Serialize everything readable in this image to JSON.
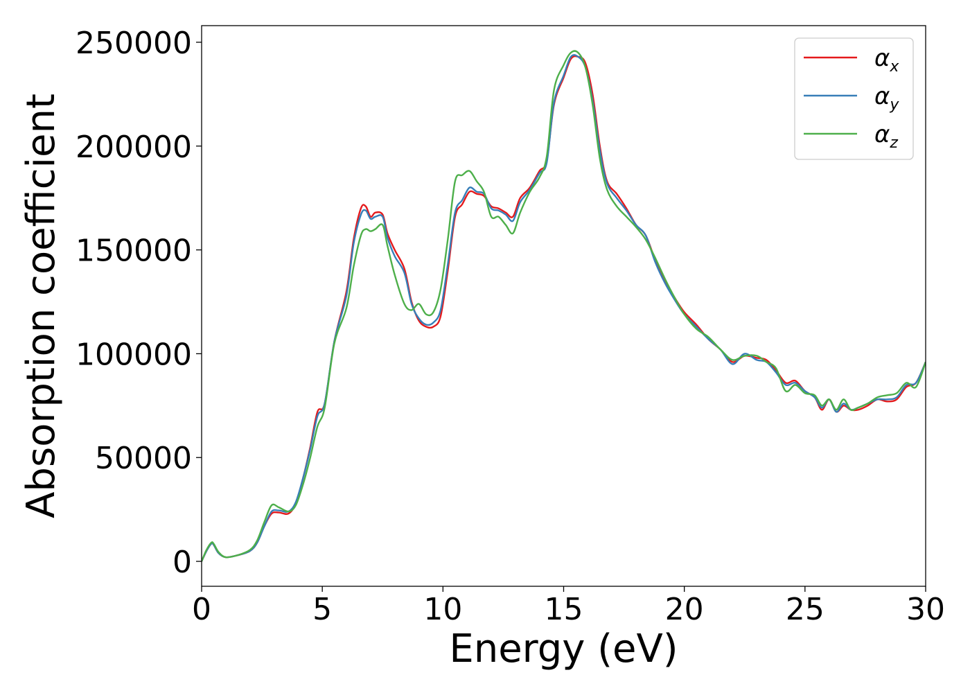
{
  "chart_data": {
    "type": "line",
    "xlabel": "Energy (eV)",
    "ylabel": "Absorption coefficient",
    "xlim": [
      0,
      30
    ],
    "ylim": [
      -12000,
      258000
    ],
    "xticks": [
      0,
      5,
      10,
      15,
      20,
      25,
      30
    ],
    "yticks": [
      0,
      50000,
      100000,
      150000,
      200000,
      250000
    ],
    "grid": false,
    "legend_position": "top-right",
    "series": [
      {
        "name": "α",
        "subscript": "x",
        "color": "#e41a1c",
        "x": [
          0,
          0.2,
          0.4,
          0.5,
          0.7,
          1.0,
          1.5,
          2.0,
          2.3,
          2.6,
          2.9,
          3.2,
          3.6,
          3.9,
          4.2,
          4.5,
          4.8,
          5.1,
          5.5,
          6.0,
          6.3,
          6.6,
          6.8,
          7.0,
          7.2,
          7.5,
          7.7,
          8.0,
          8.4,
          8.7,
          9.0,
          9.3,
          9.6,
          9.9,
          10.2,
          10.5,
          10.8,
          11.1,
          11.4,
          11.7,
          12.0,
          12.3,
          12.6,
          12.9,
          13.2,
          13.6,
          14.0,
          14.3,
          14.6,
          15.0,
          15.3,
          15.6,
          15.9,
          16.2,
          16.5,
          16.8,
          17.2,
          17.6,
          18.0,
          18.4,
          18.8,
          19.2,
          19.6,
          20.0,
          20.5,
          21.0,
          21.5,
          22.0,
          22.5,
          23.0,
          23.4,
          23.8,
          24.2,
          24.6,
          25.0,
          25.4,
          25.7,
          26.0,
          26.3,
          26.6,
          26.9,
          27.2,
          27.6,
          28.0,
          28.4,
          28.8,
          29.2,
          29.6,
          30.0
        ],
        "values": [
          0,
          5000,
          8500,
          8000,
          4000,
          2000,
          3000,
          5000,
          9000,
          17000,
          23000,
          23500,
          23000,
          28000,
          40000,
          55000,
          72000,
          76000,
          106000,
          130000,
          155000,
          170000,
          171000,
          166000,
          168000,
          167000,
          158000,
          150000,
          141000,
          125000,
          116000,
          113000,
          113000,
          118000,
          140000,
          166000,
          172000,
          178000,
          177000,
          176000,
          171000,
          170000,
          168000,
          166000,
          175000,
          180000,
          188000,
          193000,
          220000,
          233000,
          242000,
          243000,
          240000,
          225000,
          200000,
          183000,
          177000,
          170000,
          162000,
          157000,
          145000,
          135000,
          127000,
          120000,
          114000,
          107000,
          102000,
          96000,
          99000,
          98000,
          97000,
          92000,
          86000,
          87000,
          82000,
          79000,
          73000,
          78000,
          72000,
          75000,
          73000,
          73000,
          75000,
          78000,
          77000,
          78000,
          84000,
          86000,
          96000
        ]
      },
      {
        "name": "α",
        "subscript": "y",
        "color": "#377eb8",
        "x": [
          0,
          0.2,
          0.4,
          0.5,
          0.7,
          1.0,
          1.5,
          2.0,
          2.3,
          2.6,
          2.9,
          3.2,
          3.6,
          3.9,
          4.2,
          4.5,
          4.8,
          5.1,
          5.5,
          6.0,
          6.3,
          6.6,
          6.8,
          7.0,
          7.2,
          7.5,
          7.7,
          8.0,
          8.4,
          8.7,
          9.0,
          9.3,
          9.6,
          9.9,
          10.2,
          10.5,
          10.8,
          11.1,
          11.4,
          11.7,
          12.0,
          12.3,
          12.6,
          12.9,
          13.2,
          13.6,
          14.0,
          14.3,
          14.6,
          15.0,
          15.3,
          15.6,
          15.9,
          16.2,
          16.5,
          16.8,
          17.2,
          17.6,
          18.0,
          18.4,
          18.8,
          19.2,
          19.6,
          20.0,
          20.5,
          21.0,
          21.5,
          22.0,
          22.5,
          23.0,
          23.4,
          23.8,
          24.2,
          24.6,
          25.0,
          25.4,
          25.7,
          26.0,
          26.3,
          26.6,
          26.9,
          27.2,
          27.6,
          28.0,
          28.4,
          28.8,
          29.2,
          29.6,
          30.0
        ],
        "values": [
          0,
          5000,
          8500,
          8000,
          4000,
          2000,
          3000,
          5000,
          9000,
          17000,
          24000,
          24500,
          24000,
          28500,
          40000,
          54000,
          70000,
          76000,
          106000,
          128000,
          153000,
          167000,
          169000,
          165000,
          166000,
          166000,
          156000,
          147000,
          139000,
          124000,
          117000,
          114000,
          115000,
          121000,
          143000,
          168000,
          174000,
          180000,
          178000,
          177000,
          170000,
          169000,
          167000,
          164000,
          173000,
          179000,
          187000,
          192000,
          221000,
          234000,
          243000,
          243000,
          238000,
          222000,
          198000,
          182000,
          175000,
          169000,
          162000,
          157000,
          144000,
          134000,
          126000,
          119000,
          113000,
          107000,
          102000,
          95000,
          100000,
          97000,
          96000,
          91000,
          85000,
          86000,
          82000,
          79000,
          74000,
          78000,
          72000,
          76000,
          73000,
          74000,
          76000,
          78000,
          78000,
          79000,
          85000,
          86000,
          96000
        ]
      },
      {
        "name": "α",
        "subscript": "z",
        "color": "#4daf4a",
        "x": [
          0,
          0.2,
          0.4,
          0.5,
          0.7,
          1.0,
          1.5,
          2.0,
          2.3,
          2.6,
          2.9,
          3.2,
          3.6,
          3.9,
          4.2,
          4.5,
          4.8,
          5.1,
          5.5,
          6.0,
          6.3,
          6.6,
          6.8,
          7.0,
          7.2,
          7.5,
          7.7,
          8.0,
          8.4,
          8.7,
          9.0,
          9.3,
          9.6,
          9.9,
          10.2,
          10.5,
          10.8,
          11.1,
          11.4,
          11.7,
          12.0,
          12.3,
          12.6,
          12.9,
          13.2,
          13.6,
          14.0,
          14.3,
          14.6,
          15.0,
          15.3,
          15.6,
          15.9,
          16.2,
          16.5,
          16.8,
          17.2,
          17.6,
          18.0,
          18.4,
          18.8,
          19.2,
          19.6,
          20.0,
          20.5,
          21.0,
          21.5,
          22.0,
          22.5,
          23.0,
          23.4,
          23.8,
          24.2,
          24.6,
          25.0,
          25.4,
          25.7,
          26.0,
          26.3,
          26.6,
          26.9,
          27.2,
          27.6,
          28.0,
          28.4,
          28.8,
          29.2,
          29.6,
          30.0
        ],
        "values": [
          0,
          5500,
          9000,
          8500,
          4500,
          2000,
          3000,
          5500,
          10000,
          19000,
          27000,
          26000,
          24000,
          27000,
          37000,
          50000,
          65000,
          74000,
          105000,
          122000,
          142000,
          157000,
          160000,
          159000,
          160000,
          162000,
          152000,
          138000,
          124000,
          121000,
          124000,
          119000,
          120000,
          131000,
          155000,
          183000,
          186000,
          188000,
          183000,
          178000,
          166000,
          166000,
          162000,
          158000,
          168000,
          178000,
          185000,
          195000,
          227000,
          239000,
          245000,
          245000,
          238000,
          220000,
          194000,
          179000,
          171000,
          166000,
          161000,
          155000,
          146000,
          136000,
          127000,
          119000,
          112000,
          108000,
          102000,
          97000,
          99000,
          99000,
          96000,
          93000,
          82000,
          85000,
          81000,
          80000,
          75000,
          78000,
          73000,
          78000,
          73000,
          74000,
          76000,
          79000,
          80000,
          81000,
          86000,
          84000,
          96000
        ]
      }
    ]
  }
}
